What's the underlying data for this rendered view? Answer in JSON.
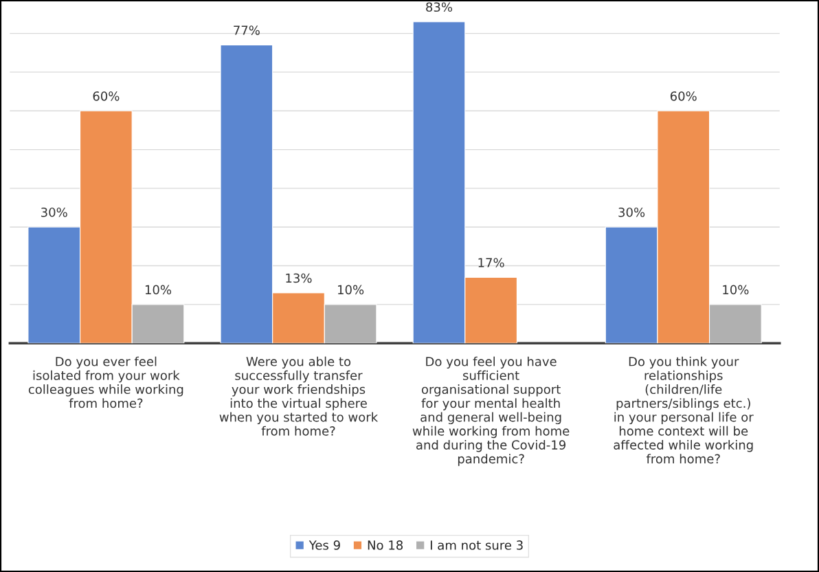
{
  "chart_data": {
    "type": "bar",
    "categories": [
      "Do you ever feel isolated from your work colleagues while working from home?",
      "Were you able to successfully transfer your work friendships into the virtual sphere when you started to work from home?",
      "Do you feel you have sufficient organisational support for your mental health and general well-being while working from home and during the Covid-19 pandemic?",
      "Do you think your relationships (children/life partners/siblings etc.) in your personal life or home context will be affected while working from home?"
    ],
    "series": [
      {
        "name": "Yes 9",
        "color": "#5b86d0",
        "values": [
          30,
          77,
          83,
          30
        ],
        "value_labels": [
          "30%",
          "77%",
          "83%",
          "30%"
        ]
      },
      {
        "name": "No 18",
        "color": "#ef8f4f",
        "values": [
          60,
          13,
          17,
          60
        ],
        "value_labels": [
          "60%",
          "13%",
          "17%",
          "60%"
        ]
      },
      {
        "name": "I am not sure 3",
        "color": "#b0b0b0",
        "values": [
          10,
          10,
          null,
          10
        ],
        "value_labels": [
          "10%",
          "10%",
          null,
          "10%"
        ]
      }
    ],
    "tick_labels": "x",
    "grid": "y",
    "legend": "bottom"
  }
}
